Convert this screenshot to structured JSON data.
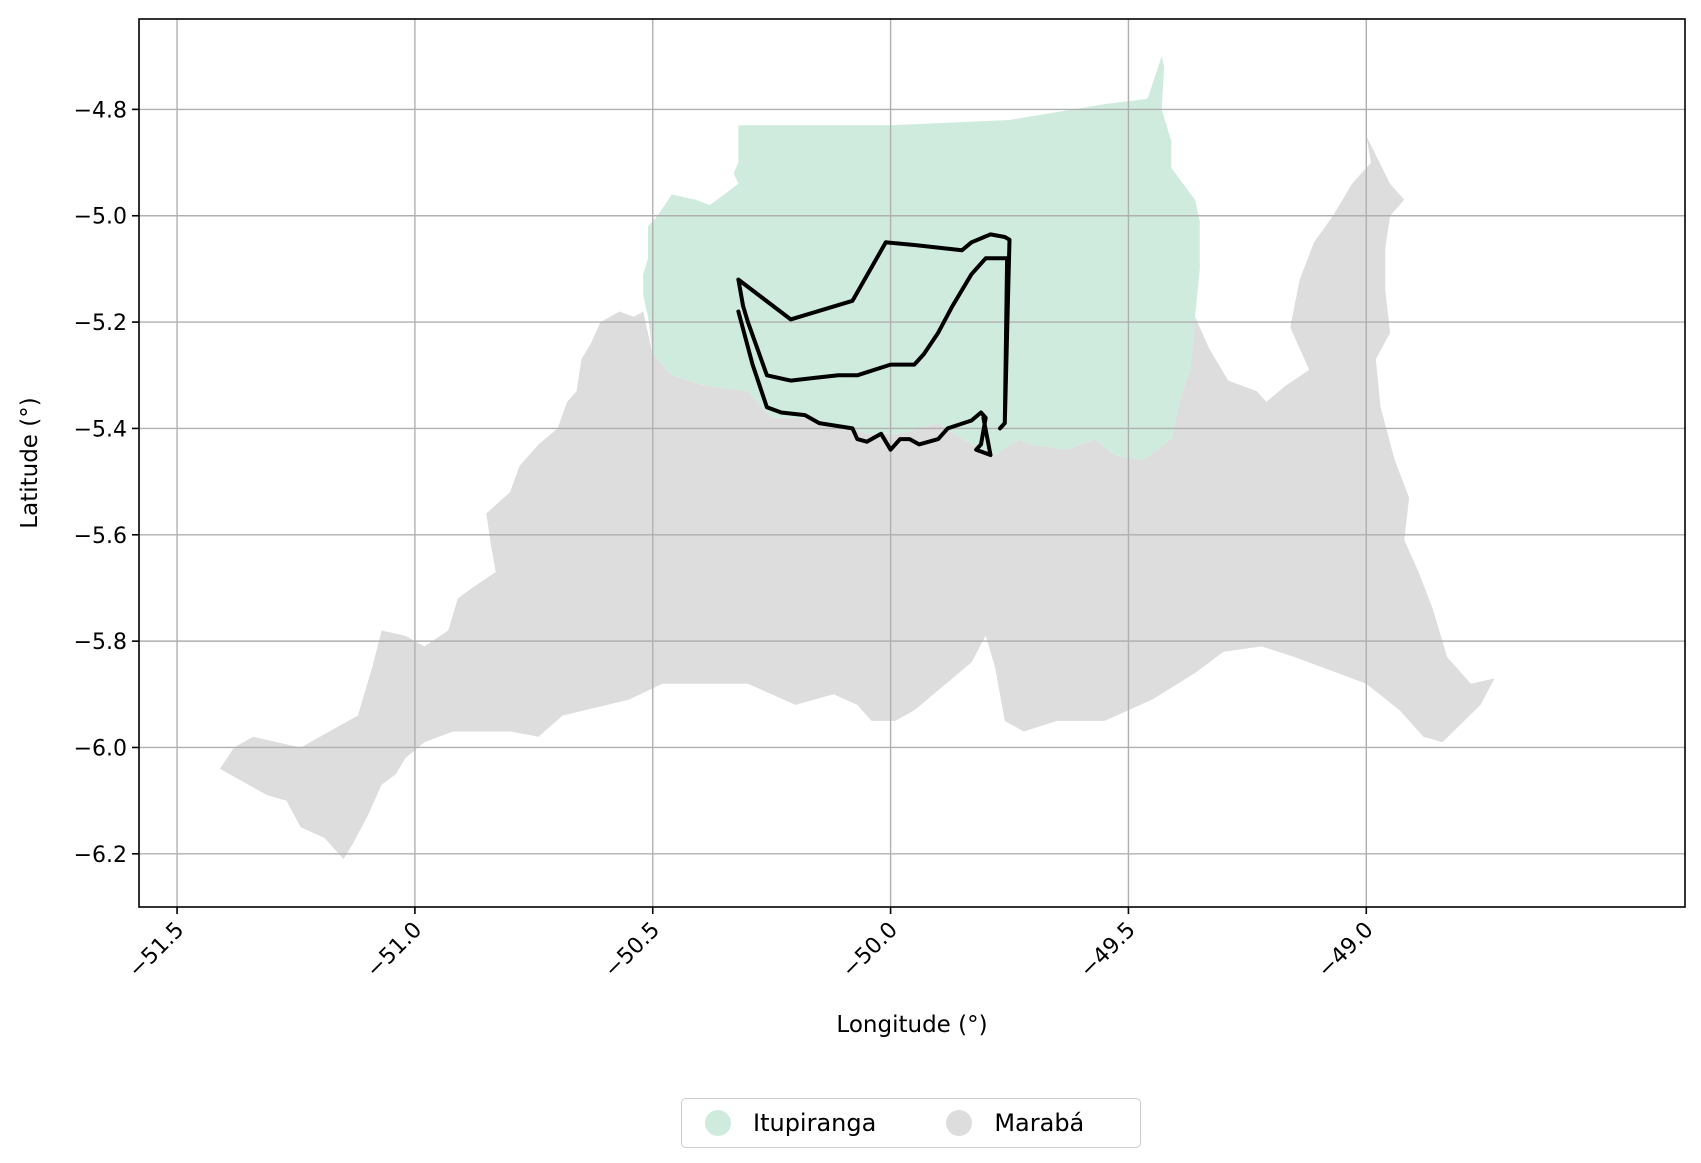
{
  "chart_data": {
    "type": "map",
    "xlabel": "Longitude (°)",
    "ylabel": "Latitude (°)",
    "xlim": [
      -51.58,
      -48.33
    ],
    "ylim": [
      -6.3,
      -4.63
    ],
    "grid": true,
    "x_ticks": [
      -51.5,
      -51.0,
      -50.5,
      -50.0,
      -49.5,
      -49.0
    ],
    "x_tick_labels": [
      "−51.5",
      "−51.0",
      "−50.5",
      "−50.0",
      "−49.5",
      "−49.0"
    ],
    "y_ticks": [
      -4.8,
      -5.0,
      -5.2,
      -5.4,
      -5.6,
      -5.8,
      -6.0,
      -6.2
    ],
    "y_tick_labels": [
      "−4.8",
      "−5.0",
      "−5.2",
      "−5.4",
      "−5.6",
      "−5.8",
      "−6.0",
      "−6.2"
    ],
    "legend_position": "bottom-center",
    "regions": [
      {
        "name": "Itupiranga",
        "color": "#cfebde",
        "polygon": [
          [
            -50.32,
            -4.83
          ],
          [
            -50.0,
            -4.83
          ],
          [
            -49.75,
            -4.82
          ],
          [
            -49.55,
            -4.79
          ],
          [
            -49.46,
            -4.78
          ],
          [
            -49.43,
            -4.7
          ],
          [
            -49.425,
            -4.72
          ],
          [
            -49.43,
            -4.8
          ],
          [
            -49.41,
            -4.86
          ],
          [
            -49.41,
            -4.91
          ],
          [
            -49.36,
            -4.97
          ],
          [
            -49.35,
            -5.01
          ],
          [
            -49.35,
            -5.1
          ],
          [
            -49.36,
            -5.19
          ],
          [
            -49.37,
            -5.29
          ],
          [
            -49.39,
            -5.34
          ],
          [
            -49.4,
            -5.38
          ],
          [
            -49.41,
            -5.42
          ],
          [
            -49.47,
            -5.46
          ],
          [
            -49.53,
            -5.45
          ],
          [
            -49.57,
            -5.42
          ],
          [
            -49.63,
            -5.44
          ],
          [
            -49.71,
            -5.43
          ],
          [
            -49.73,
            -5.42
          ],
          [
            -49.78,
            -5.45
          ],
          [
            -49.83,
            -5.43
          ],
          [
            -49.9,
            -5.39
          ],
          [
            -49.98,
            -5.41
          ],
          [
            -50.05,
            -5.41
          ],
          [
            -50.1,
            -5.4
          ],
          [
            -50.17,
            -5.38
          ],
          [
            -50.25,
            -5.38
          ],
          [
            -50.3,
            -5.33
          ],
          [
            -50.39,
            -5.32
          ],
          [
            -50.46,
            -5.3
          ],
          [
            -50.5,
            -5.26
          ],
          [
            -50.51,
            -5.19
          ],
          [
            -50.52,
            -5.15
          ],
          [
            -50.52,
            -5.11
          ],
          [
            -50.51,
            -5.08
          ],
          [
            -50.51,
            -5.02
          ],
          [
            -50.49,
            -5.0
          ],
          [
            -50.46,
            -4.96
          ],
          [
            -50.41,
            -4.97
          ],
          [
            -50.38,
            -4.98
          ],
          [
            -50.35,
            -4.96
          ],
          [
            -50.32,
            -4.94
          ],
          [
            -50.33,
            -4.92
          ],
          [
            -50.32,
            -4.9
          ],
          [
            -50.32,
            -4.83
          ]
        ]
      },
      {
        "name": "Marabá",
        "color": "#dddddd",
        "polygon": [
          [
            -51.41,
            -6.04
          ],
          [
            -51.38,
            -6.0
          ],
          [
            -51.34,
            -5.98
          ],
          [
            -51.29,
            -5.99
          ],
          [
            -51.24,
            -6.0
          ],
          [
            -51.18,
            -5.97
          ],
          [
            -51.12,
            -5.94
          ],
          [
            -51.09,
            -5.85
          ],
          [
            -51.07,
            -5.78
          ],
          [
            -51.02,
            -5.79
          ],
          [
            -50.98,
            -5.81
          ],
          [
            -50.93,
            -5.78
          ],
          [
            -50.91,
            -5.72
          ],
          [
            -50.88,
            -5.7
          ],
          [
            -50.83,
            -5.67
          ],
          [
            -50.84,
            -5.62
          ],
          [
            -50.85,
            -5.56
          ],
          [
            -50.8,
            -5.52
          ],
          [
            -50.78,
            -5.47
          ],
          [
            -50.74,
            -5.43
          ],
          [
            -50.7,
            -5.4
          ],
          [
            -50.68,
            -5.35
          ],
          [
            -50.66,
            -5.33
          ],
          [
            -50.65,
            -5.27
          ],
          [
            -50.63,
            -5.24
          ],
          [
            -50.61,
            -5.2
          ],
          [
            -50.57,
            -5.18
          ],
          [
            -50.54,
            -5.19
          ],
          [
            -50.52,
            -5.18
          ],
          [
            -50.5,
            -5.26
          ],
          [
            -50.46,
            -5.3
          ],
          [
            -50.39,
            -5.32
          ],
          [
            -50.3,
            -5.33
          ],
          [
            -50.25,
            -5.38
          ],
          [
            -50.17,
            -5.38
          ],
          [
            -50.1,
            -5.4
          ],
          [
            -50.05,
            -5.41
          ],
          [
            -49.98,
            -5.41
          ],
          [
            -49.9,
            -5.39
          ],
          [
            -49.83,
            -5.43
          ],
          [
            -49.78,
            -5.45
          ],
          [
            -49.73,
            -5.42
          ],
          [
            -49.71,
            -5.43
          ],
          [
            -49.63,
            -5.44
          ],
          [
            -49.57,
            -5.42
          ],
          [
            -49.53,
            -5.45
          ],
          [
            -49.47,
            -5.46
          ],
          [
            -49.41,
            -5.42
          ],
          [
            -49.4,
            -5.38
          ],
          [
            -49.39,
            -5.34
          ],
          [
            -49.37,
            -5.29
          ],
          [
            -49.36,
            -5.19
          ],
          [
            -49.33,
            -5.25
          ],
          [
            -49.29,
            -5.31
          ],
          [
            -49.23,
            -5.33
          ],
          [
            -49.21,
            -5.35
          ],
          [
            -49.17,
            -5.32
          ],
          [
            -49.12,
            -5.29
          ],
          [
            -49.16,
            -5.21
          ],
          [
            -49.14,
            -5.12
          ],
          [
            -49.11,
            -5.05
          ],
          [
            -49.07,
            -5.0
          ],
          [
            -49.05,
            -4.97
          ],
          [
            -49.03,
            -4.94
          ],
          [
            -48.99,
            -4.9
          ],
          [
            -49.0,
            -4.85
          ],
          [
            -48.95,
            -4.94
          ],
          [
            -48.92,
            -4.97
          ],
          [
            -48.95,
            -5.0
          ],
          [
            -48.96,
            -5.06
          ],
          [
            -48.96,
            -5.14
          ],
          [
            -48.95,
            -5.22
          ],
          [
            -48.98,
            -5.27
          ],
          [
            -48.97,
            -5.36
          ],
          [
            -48.94,
            -5.46
          ],
          [
            -48.91,
            -5.53
          ],
          [
            -48.92,
            -5.61
          ],
          [
            -48.89,
            -5.67
          ],
          [
            -48.86,
            -5.74
          ],
          [
            -48.83,
            -5.83
          ],
          [
            -48.78,
            -5.88
          ],
          [
            -48.73,
            -5.87
          ],
          [
            -48.76,
            -5.92
          ],
          [
            -48.84,
            -5.99
          ],
          [
            -48.88,
            -5.98
          ],
          [
            -48.93,
            -5.93
          ],
          [
            -49.0,
            -5.88
          ],
          [
            -49.15,
            -5.83
          ],
          [
            -49.22,
            -5.81
          ],
          [
            -49.3,
            -5.82
          ],
          [
            -49.36,
            -5.86
          ],
          [
            -49.45,
            -5.91
          ],
          [
            -49.55,
            -5.95
          ],
          [
            -49.65,
            -5.95
          ],
          [
            -49.72,
            -5.97
          ],
          [
            -49.76,
            -5.95
          ],
          [
            -49.78,
            -5.85
          ],
          [
            -49.8,
            -5.79
          ],
          [
            -49.83,
            -5.84
          ],
          [
            -49.87,
            -5.87
          ],
          [
            -49.95,
            -5.93
          ],
          [
            -49.99,
            -5.95
          ],
          [
            -50.04,
            -5.95
          ],
          [
            -50.07,
            -5.92
          ],
          [
            -50.12,
            -5.9
          ],
          [
            -50.2,
            -5.92
          ],
          [
            -50.3,
            -5.88
          ],
          [
            -50.4,
            -5.88
          ],
          [
            -50.48,
            -5.88
          ],
          [
            -50.55,
            -5.91
          ],
          [
            -50.69,
            -5.94
          ],
          [
            -50.74,
            -5.98
          ],
          [
            -50.8,
            -5.97
          ],
          [
            -50.92,
            -5.97
          ],
          [
            -50.98,
            -5.99
          ],
          [
            -51.02,
            -6.02
          ],
          [
            -51.04,
            -6.05
          ],
          [
            -51.07,
            -6.07
          ],
          [
            -51.1,
            -6.13
          ],
          [
            -51.13,
            -6.18
          ],
          [
            -51.15,
            -6.21
          ],
          [
            -51.19,
            -6.17
          ],
          [
            -51.24,
            -6.15
          ],
          [
            -51.27,
            -6.1
          ],
          [
            -51.31,
            -6.09
          ],
          [
            -51.35,
            -6.07
          ],
          [
            -51.41,
            -6.04
          ]
        ]
      }
    ],
    "outlines": [
      [
        [
          -50.32,
          -5.12
        ],
        [
          -50.21,
          -5.195
        ],
        [
          -50.08,
          -5.16
        ],
        [
          -50.01,
          -5.05
        ],
        [
          -49.95,
          -5.055
        ],
        [
          -49.85,
          -5.065
        ],
        [
          -49.83,
          -5.05
        ],
        [
          -49.79,
          -5.035
        ],
        [
          -49.76,
          -5.04
        ],
        [
          -49.75,
          -5.045
        ],
        [
          -49.76,
          -5.39
        ],
        [
          -49.77,
          -5.4
        ],
        [
          -49.76,
          -5.39
        ],
        [
          -49.755,
          -5.08
        ],
        [
          -49.8,
          -5.08
        ],
        [
          -49.83,
          -5.11
        ],
        [
          -49.87,
          -5.17
        ],
        [
          -49.9,
          -5.22
        ],
        [
          -49.93,
          -5.26
        ],
        [
          -49.95,
          -5.28
        ],
        [
          -50.0,
          -5.28
        ],
        [
          -50.07,
          -5.3
        ],
        [
          -50.11,
          -5.3
        ],
        [
          -50.16,
          -5.305
        ],
        [
          -50.21,
          -5.31
        ],
        [
          -50.26,
          -5.3
        ],
        [
          -50.28,
          -5.25
        ],
        [
          -50.3,
          -5.2
        ],
        [
          -50.31,
          -5.17
        ],
        [
          -50.32,
          -5.12
        ]
      ],
      [
        [
          -50.32,
          -5.18
        ],
        [
          -50.29,
          -5.28
        ],
        [
          -50.26,
          -5.36
        ],
        [
          -50.23,
          -5.37
        ],
        [
          -50.18,
          -5.375
        ],
        [
          -50.15,
          -5.39
        ],
        [
          -50.08,
          -5.4
        ],
        [
          -50.07,
          -5.42
        ],
        [
          -50.05,
          -5.425
        ],
        [
          -50.02,
          -5.41
        ],
        [
          -50.0,
          -5.44
        ],
        [
          -49.98,
          -5.42
        ],
        [
          -49.96,
          -5.42
        ],
        [
          -49.94,
          -5.43
        ],
        [
          -49.9,
          -5.42
        ],
        [
          -49.88,
          -5.4
        ],
        [
          -49.83,
          -5.385
        ],
        [
          -49.81,
          -5.37
        ],
        [
          -49.8,
          -5.38
        ],
        [
          -49.81,
          -5.43
        ],
        [
          -49.82,
          -5.44
        ],
        [
          -49.79,
          -5.45
        ],
        [
          -49.805,
          -5.38
        ]
      ]
    ]
  },
  "legend": {
    "items": [
      {
        "label": "Itupiranga",
        "color": "#cfebde"
      },
      {
        "label": "Marabá",
        "color": "#dddddd"
      }
    ]
  }
}
